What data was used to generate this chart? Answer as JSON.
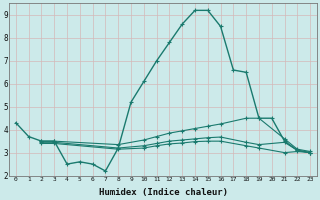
{
  "xlabel": "Humidex (Indice chaleur)",
  "bg_color": "#cceaea",
  "grid_color": "#b0d4d4",
  "line_color": "#1a7a6e",
  "xlim": [
    -0.5,
    23.5
  ],
  "ylim": [
    2,
    9.5
  ],
  "yticks": [
    2,
    3,
    4,
    5,
    6,
    7,
    8,
    9
  ],
  "xticks": [
    0,
    1,
    2,
    3,
    4,
    5,
    6,
    7,
    8,
    9,
    10,
    11,
    12,
    13,
    14,
    15,
    16,
    17,
    18,
    19,
    20,
    21,
    22,
    23
  ],
  "series": [
    {
      "x": [
        0,
        1,
        2,
        3,
        4,
        5,
        6,
        7,
        8,
        9,
        10,
        11,
        12,
        13,
        14,
        15,
        16,
        17,
        18,
        19,
        20,
        21,
        22,
        23
      ],
      "y": [
        4.3,
        3.7,
        3.5,
        3.5,
        2.5,
        2.6,
        2.5,
        2.2,
        3.2,
        5.2,
        6.1,
        7.0,
        7.8,
        8.6,
        9.2,
        9.2,
        8.5,
        6.6,
        6.5,
        4.5,
        4.5,
        3.5,
        3.1,
        3.0
      ]
    },
    {
      "x": [
        2,
        3,
        8,
        10,
        11,
        12,
        13,
        14,
        15,
        16,
        18,
        19,
        21,
        22,
        23
      ],
      "y": [
        3.5,
        3.5,
        3.35,
        3.55,
        3.7,
        3.85,
        3.95,
        4.05,
        4.15,
        4.25,
        4.5,
        4.5,
        3.6,
        3.15,
        3.05
      ]
    },
    {
      "x": [
        2,
        3,
        8,
        10,
        11,
        12,
        13,
        14,
        15,
        16,
        18,
        19,
        21,
        22,
        23
      ],
      "y": [
        3.45,
        3.45,
        3.2,
        3.3,
        3.4,
        3.5,
        3.55,
        3.6,
        3.65,
        3.68,
        3.45,
        3.35,
        3.45,
        3.1,
        3.0
      ]
    },
    {
      "x": [
        2,
        3,
        8,
        10,
        11,
        12,
        13,
        14,
        15,
        16,
        18,
        19,
        21,
        22,
        23
      ],
      "y": [
        3.4,
        3.4,
        3.15,
        3.2,
        3.3,
        3.38,
        3.42,
        3.48,
        3.5,
        3.5,
        3.3,
        3.2,
        3.0,
        3.05,
        3.0
      ]
    }
  ]
}
